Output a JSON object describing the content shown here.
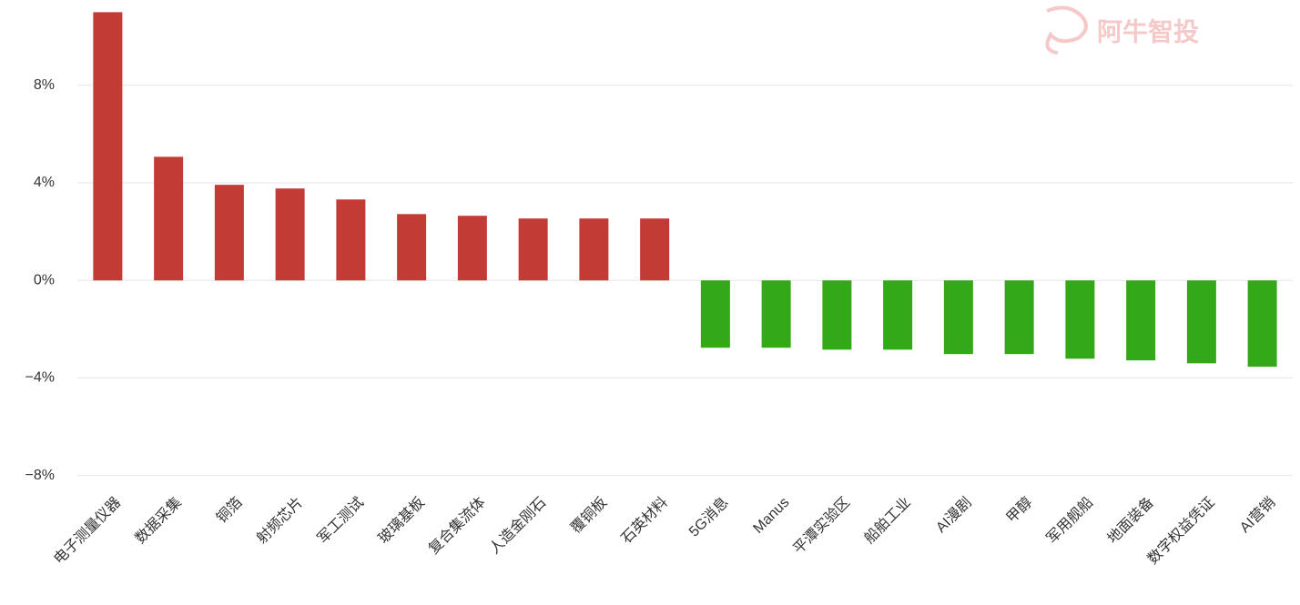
{
  "chart_data": {
    "type": "bar",
    "watermark": "阿牛智投",
    "categories": [
      "电子测量仪器",
      "数据采集",
      "铜箔",
      "射频芯片",
      "军工测试",
      "玻璃基板",
      "复合集流体",
      "人造金刚石",
      "覆铜板",
      "石英材料",
      "5G消息",
      "Manus",
      "平潭实验区",
      "船舶工业",
      "AI漫剧",
      "甲醇",
      "军用舰船",
      "地面装备",
      "数字权益凭证",
      "AI营销"
    ],
    "values": [
      11.0,
      5.07,
      3.92,
      3.77,
      3.32,
      2.72,
      2.65,
      2.54,
      2.54,
      2.54,
      -2.76,
      -2.76,
      -2.84,
      -2.84,
      -3.02,
      -3.02,
      -3.21,
      -3.28,
      -3.4,
      -3.54
    ],
    "positive_color": "#c23b35",
    "negative_color": "#33a919",
    "ylim": [
      -8.2,
      11.5
    ],
    "yticks": [
      {
        "value": 8,
        "label": "8%"
      },
      {
        "value": 4,
        "label": "4%"
      },
      {
        "value": 0,
        "label": "0%"
      },
      {
        "value": -4,
        "label": "−4%"
      },
      {
        "value": -8,
        "label": "−8%"
      }
    ],
    "grid": true
  }
}
